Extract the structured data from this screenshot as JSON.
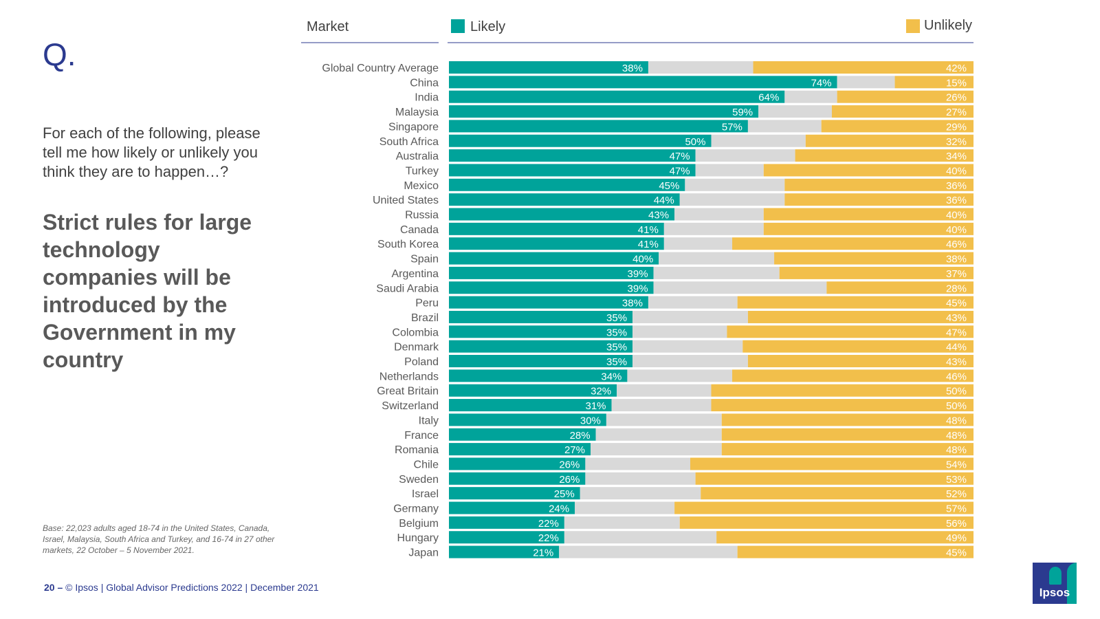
{
  "slide": {
    "q_mark": "Q.",
    "question": "For each of the following, please tell me how likely or unlikely you think they are to happen…?",
    "statement": "Strict rules for large technology companies will be introduced by the Government in my country",
    "base_note": "Base: 22,023 adults aged 18-74 in the United States, Canada, Israel, Malaysia, South Africa and Turkey, and 16-74 in 27 other markets, 22 October – 5 November 2021.",
    "footer_page": "20 –",
    "footer_text": "© Ipsos | Global Advisor Predictions 2022 | December 2021",
    "logo_text": "Ipsos"
  },
  "chart_data": {
    "type": "bar",
    "orientation": "horizontal-stacked-100",
    "column_header": "Market",
    "series": [
      {
        "name": "Likely",
        "color": "#00a39a"
      },
      {
        "name": "",
        "color": "#d9d9d9"
      },
      {
        "name": "Unlikely",
        "color": "#f2bf4b"
      }
    ],
    "markets": [
      {
        "name": "Global Country Average",
        "likely": 38,
        "unlikely": 42
      },
      {
        "name": "China",
        "likely": 74,
        "unlikely": 15
      },
      {
        "name": "India",
        "likely": 64,
        "unlikely": 26
      },
      {
        "name": "Malaysia",
        "likely": 59,
        "unlikely": 27
      },
      {
        "name": "Singapore",
        "likely": 57,
        "unlikely": 29
      },
      {
        "name": "South Africa",
        "likely": 50,
        "unlikely": 32
      },
      {
        "name": "Australia",
        "likely": 47,
        "unlikely": 34
      },
      {
        "name": "Turkey",
        "likely": 47,
        "unlikely": 40
      },
      {
        "name": "Mexico",
        "likely": 45,
        "unlikely": 36
      },
      {
        "name": "United States",
        "likely": 44,
        "unlikely": 36
      },
      {
        "name": "Russia",
        "likely": 43,
        "unlikely": 40
      },
      {
        "name": "Canada",
        "likely": 41,
        "unlikely": 40
      },
      {
        "name": "South Korea",
        "likely": 41,
        "unlikely": 46
      },
      {
        "name": "Spain",
        "likely": 40,
        "unlikely": 38
      },
      {
        "name": "Argentina",
        "likely": 39,
        "unlikely": 37
      },
      {
        "name": "Saudi Arabia",
        "likely": 39,
        "unlikely": 28
      },
      {
        "name": "Peru",
        "likely": 38,
        "unlikely": 45
      },
      {
        "name": "Brazil",
        "likely": 35,
        "unlikely": 43
      },
      {
        "name": "Colombia",
        "likely": 35,
        "unlikely": 47
      },
      {
        "name": "Denmark",
        "likely": 35,
        "unlikely": 44
      },
      {
        "name": "Poland",
        "likely": 35,
        "unlikely": 43
      },
      {
        "name": "Netherlands",
        "likely": 34,
        "unlikely": 46
      },
      {
        "name": "Great Britain",
        "likely": 32,
        "unlikely": 50
      },
      {
        "name": "Switzerland",
        "likely": 31,
        "unlikely": 50
      },
      {
        "name": "Italy",
        "likely": 30,
        "unlikely": 48
      },
      {
        "name": "France",
        "likely": 28,
        "unlikely": 48
      },
      {
        "name": "Romania",
        "likely": 27,
        "unlikely": 48
      },
      {
        "name": "Chile",
        "likely": 26,
        "unlikely": 54
      },
      {
        "name": "Sweden",
        "likely": 26,
        "unlikely": 53
      },
      {
        "name": "Israel",
        "likely": 25,
        "unlikely": 52
      },
      {
        "name": "Germany",
        "likely": 24,
        "unlikely": 57
      },
      {
        "name": "Belgium",
        "likely": 22,
        "unlikely": 56
      },
      {
        "name": "Hungary",
        "likely": 22,
        "unlikely": 49
      },
      {
        "name": "Japan",
        "likely": 21,
        "unlikely": 45
      }
    ],
    "xlim": [
      0,
      100
    ],
    "value_suffix": "%",
    "grid": false,
    "legend_placement": "top"
  }
}
